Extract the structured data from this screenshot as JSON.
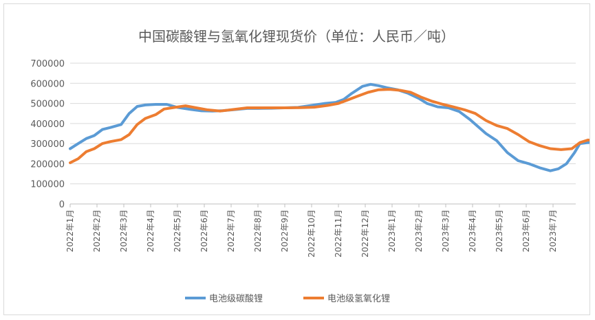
{
  "chart_data": {
    "type": "line",
    "title": "中国碳酸锂与氢氧化锂现货价（单位：人民币／吨）",
    "xlabel": "",
    "ylabel": "",
    "ylim": [
      0,
      700000
    ],
    "yticks": [
      0,
      100000,
      200000,
      300000,
      400000,
      500000,
      600000,
      700000
    ],
    "ytick_labels": [
      "0",
      "100000",
      "200000",
      "300000",
      "400000",
      "500000",
      "600000",
      "700000"
    ],
    "categories": [
      "2022年1月",
      "2022年2月",
      "2022年3月",
      "2022年4月",
      "2022年5月",
      "2022年6月",
      "2022年7月",
      "2022年8月",
      "2022年9月",
      "2022年10月",
      "2022年11月",
      "2022年12月",
      "2023年1月",
      "2023年2月",
      "2023年3月",
      "2023年4月",
      "2023年5月",
      "2023年6月",
      "2023年7月"
    ],
    "x_range_months": [
      0,
      18.75
    ],
    "grid": "horizontal",
    "legend": "bottom",
    "series": [
      {
        "name": "电池级碳酸锂",
        "color": "#5b9bd5",
        "points": [
          [
            0,
            275000
          ],
          [
            0.3,
            300000
          ],
          [
            0.6,
            325000
          ],
          [
            0.9,
            340000
          ],
          [
            1.2,
            370000
          ],
          [
            1.5,
            380000
          ],
          [
            1.9,
            395000
          ],
          [
            2.2,
            450000
          ],
          [
            2.5,
            485000
          ],
          [
            2.8,
            492000
          ],
          [
            3.2,
            495000
          ],
          [
            3.6,
            495000
          ],
          [
            4.0,
            480000
          ],
          [
            4.5,
            470000
          ],
          [
            4.9,
            463000
          ],
          [
            5.3,
            462000
          ],
          [
            5.7,
            464000
          ],
          [
            6.2,
            470000
          ],
          [
            6.6,
            475000
          ],
          [
            7.0,
            475000
          ],
          [
            7.5,
            476000
          ],
          [
            8.0,
            478000
          ],
          [
            8.5,
            480000
          ],
          [
            9.0,
            490000
          ],
          [
            9.5,
            500000
          ],
          [
            9.9,
            505000
          ],
          [
            10.2,
            520000
          ],
          [
            10.5,
            550000
          ],
          [
            10.9,
            585000
          ],
          [
            11.2,
            595000
          ],
          [
            11.5,
            588000
          ],
          [
            11.8,
            578000
          ],
          [
            12.2,
            568000
          ],
          [
            12.6,
            550000
          ],
          [
            13.0,
            525000
          ],
          [
            13.3,
            500000
          ],
          [
            13.7,
            483000
          ],
          [
            14.1,
            478000
          ],
          [
            14.5,
            460000
          ],
          [
            14.9,
            420000
          ],
          [
            15.2,
            385000
          ],
          [
            15.5,
            350000
          ],
          [
            15.9,
            315000
          ],
          [
            16.3,
            255000
          ],
          [
            16.7,
            215000
          ],
          [
            17.1,
            200000
          ],
          [
            17.5,
            180000
          ],
          [
            17.9,
            165000
          ],
          [
            18.2,
            175000
          ],
          [
            18.5,
            200000
          ],
          [
            18.8,
            255000
          ],
          [
            19.0,
            300000
          ],
          [
            19.3,
            305000
          ],
          [
            19.7,
            308000
          ],
          [
            20.1,
            310000
          ],
          [
            20.6,
            310000
          ],
          [
            21.1,
            308000
          ],
          [
            21.5,
            305000
          ],
          [
            21.9,
            300000
          ],
          [
            22.1,
            295000
          ]
        ]
      },
      {
        "name": "电池级氢氧化锂",
        "color": "#ed7d31",
        "points": [
          [
            0,
            205000
          ],
          [
            0.3,
            225000
          ],
          [
            0.6,
            260000
          ],
          [
            0.9,
            275000
          ],
          [
            1.2,
            300000
          ],
          [
            1.5,
            310000
          ],
          [
            1.9,
            320000
          ],
          [
            2.2,
            345000
          ],
          [
            2.5,
            395000
          ],
          [
            2.8,
            425000
          ],
          [
            3.2,
            445000
          ],
          [
            3.5,
            472000
          ],
          [
            3.9,
            480000
          ],
          [
            4.3,
            488000
          ],
          [
            4.7,
            478000
          ],
          [
            5.1,
            468000
          ],
          [
            5.6,
            462000
          ],
          [
            6.1,
            470000
          ],
          [
            6.6,
            478000
          ],
          [
            7.1,
            478000
          ],
          [
            7.6,
            478000
          ],
          [
            8.1,
            478000
          ],
          [
            8.6,
            479000
          ],
          [
            9.1,
            481000
          ],
          [
            9.6,
            490000
          ],
          [
            10.0,
            500000
          ],
          [
            10.3,
            515000
          ],
          [
            10.7,
            535000
          ],
          [
            11.1,
            555000
          ],
          [
            11.5,
            568000
          ],
          [
            11.9,
            570000
          ],
          [
            12.3,
            565000
          ],
          [
            12.7,
            555000
          ],
          [
            13.1,
            530000
          ],
          [
            13.5,
            510000
          ],
          [
            13.9,
            495000
          ],
          [
            14.3,
            482000
          ],
          [
            14.7,
            468000
          ],
          [
            15.1,
            450000
          ],
          [
            15.5,
            415000
          ],
          [
            15.9,
            390000
          ],
          [
            16.3,
            375000
          ],
          [
            16.7,
            345000
          ],
          [
            17.1,
            310000
          ],
          [
            17.5,
            290000
          ],
          [
            17.9,
            275000
          ],
          [
            18.3,
            270000
          ],
          [
            18.7,
            275000
          ],
          [
            19.0,
            305000
          ],
          [
            19.3,
            318000
          ],
          [
            19.7,
            313000
          ],
          [
            20.2,
            310000
          ],
          [
            20.7,
            310000
          ],
          [
            21.2,
            300000
          ],
          [
            21.6,
            290000
          ],
          [
            22.1,
            275000
          ]
        ]
      }
    ]
  }
}
